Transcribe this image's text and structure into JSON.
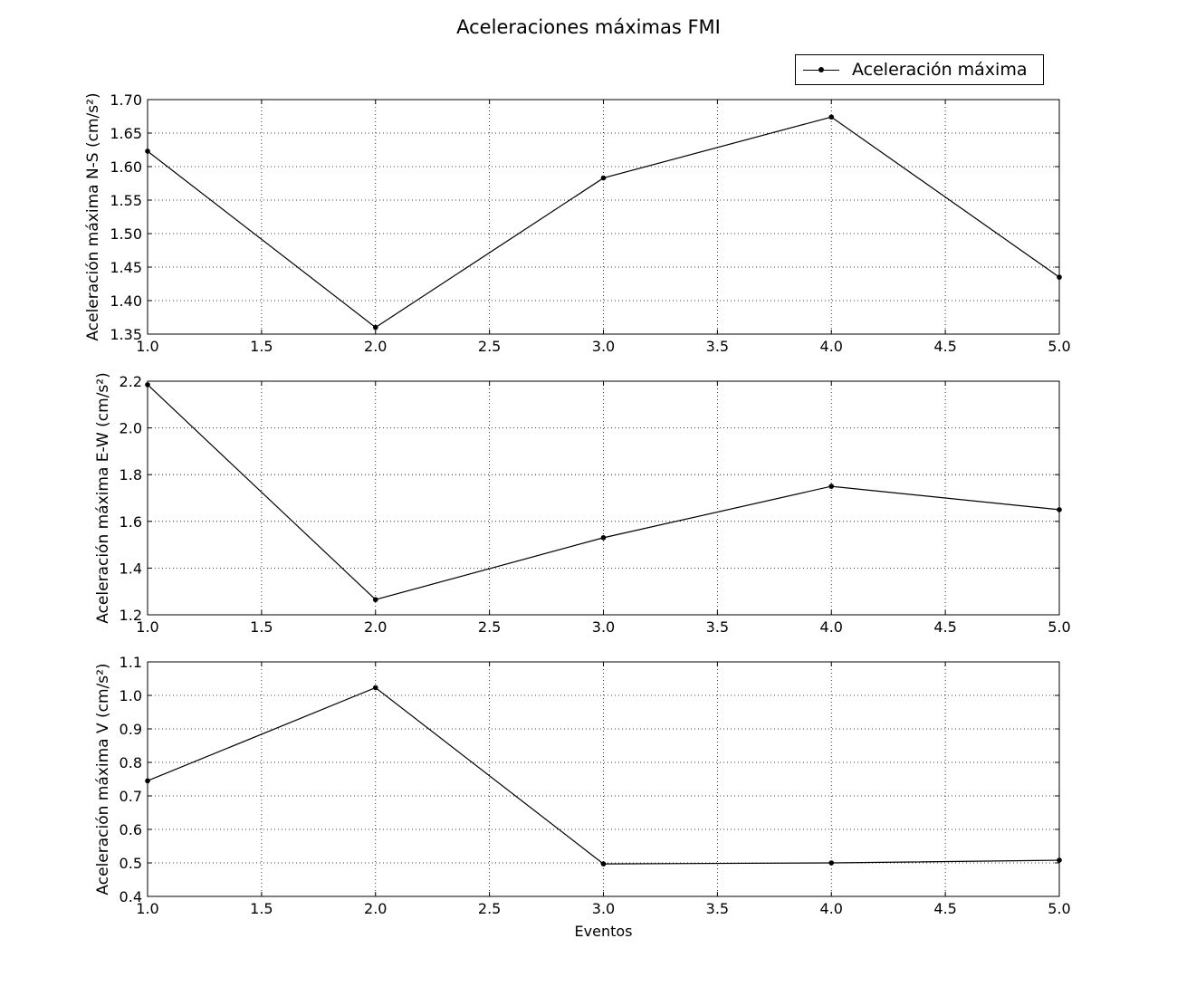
{
  "title": "Aceleraciones máximas FMI",
  "legend": {
    "label": "Aceleración máxima"
  },
  "chart_data": [
    {
      "type": "line",
      "ylabel": "Aceleración máxima N-S (cm/s²)",
      "xlabel": "",
      "x": [
        1.0,
        2.0,
        3.0,
        4.0,
        5.0
      ],
      "series": [
        {
          "name": "Aceleración máxima",
          "values": [
            1.623,
            1.36,
            1.583,
            1.674,
            1.435
          ]
        }
      ],
      "xlim": [
        1.0,
        5.0
      ],
      "ylim": [
        1.35,
        1.7
      ],
      "xticks": [
        "1.0",
        "1.5",
        "2.0",
        "2.5",
        "3.0",
        "3.5",
        "4.0",
        "4.5",
        "5.0"
      ],
      "yticks": [
        "1.35",
        "1.40",
        "1.45",
        "1.50",
        "1.55",
        "1.60",
        "1.65",
        "1.70"
      ],
      "grid": true,
      "color": "#000000"
    },
    {
      "type": "line",
      "ylabel": "Aceleración máxima E-W (cm/s²)",
      "xlabel": "",
      "x": [
        1.0,
        2.0,
        3.0,
        4.0,
        5.0
      ],
      "series": [
        {
          "name": "Aceleración máxima",
          "values": [
            2.185,
            1.265,
            1.53,
            1.75,
            1.65
          ]
        }
      ],
      "xlim": [
        1.0,
        5.0
      ],
      "ylim": [
        1.2,
        2.2
      ],
      "xticks": [
        "1.0",
        "1.5",
        "2.0",
        "2.5",
        "3.0",
        "3.5",
        "4.0",
        "4.5",
        "5.0"
      ],
      "yticks": [
        "1.2",
        "1.4",
        "1.6",
        "1.8",
        "2.0",
        "2.2"
      ],
      "grid": true,
      "color": "#000000"
    },
    {
      "type": "line",
      "ylabel": "Aceleración máxima V (cm/s²)",
      "xlabel": "Eventos",
      "x": [
        1.0,
        2.0,
        3.0,
        4.0,
        5.0
      ],
      "series": [
        {
          "name": "Aceleración máxima",
          "values": [
            0.745,
            1.023,
            0.497,
            0.5,
            0.508
          ]
        }
      ],
      "xlim": [
        1.0,
        5.0
      ],
      "ylim": [
        0.4,
        1.1
      ],
      "xticks": [
        "1.0",
        "1.5",
        "2.0",
        "2.5",
        "3.0",
        "3.5",
        "4.0",
        "4.5",
        "5.0"
      ],
      "yticks": [
        "0.4",
        "0.5",
        "0.6",
        "0.7",
        "0.8",
        "0.9",
        "1.0",
        "1.1"
      ],
      "grid": true,
      "color": "#000000"
    }
  ]
}
